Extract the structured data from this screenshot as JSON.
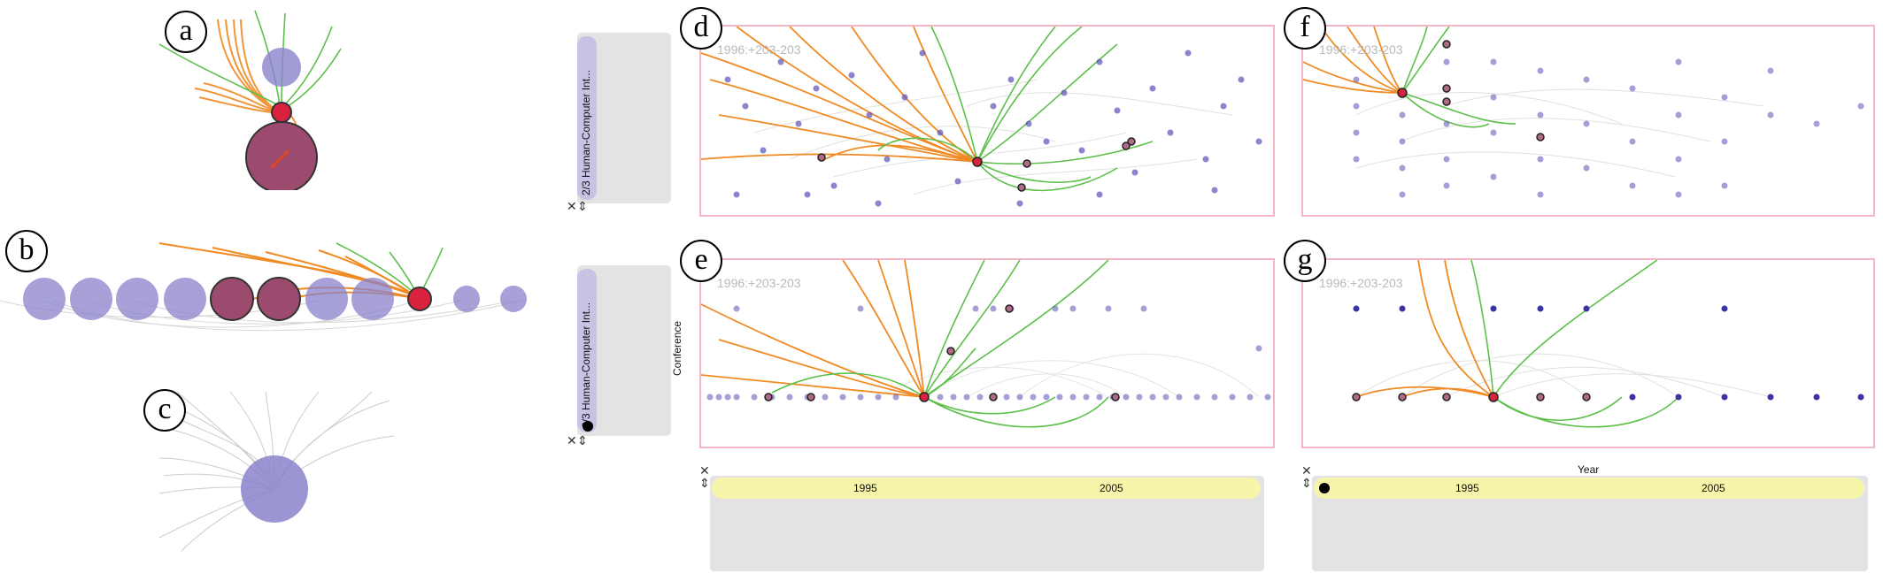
{
  "panels": {
    "a": {
      "tag": "a"
    },
    "b": {
      "tag": "b"
    },
    "c": {
      "tag": "c"
    },
    "d": {
      "tag": "d",
      "label": "1996:+203-203"
    },
    "e": {
      "tag": "e",
      "label": "1996:+203-203"
    },
    "f": {
      "tag": "f",
      "label": "1996:+203-203"
    },
    "g": {
      "tag": "g",
      "label": "1996:+203-203"
    }
  },
  "side_controls": [
    {
      "label": "2/3 Human-Computer Int...",
      "close": "✕",
      "resize": "⇕"
    },
    {
      "label": "2/3 Human-Computer Int...",
      "close": "✕",
      "resize": "⇕"
    }
  ],
  "e_axis_label": "Conference",
  "time_controls": [
    {
      "tick1": "1995",
      "tick2": "2005",
      "close": "✕",
      "resize": "⇕",
      "axis_title": ""
    },
    {
      "tick1": "1995",
      "tick2": "2005",
      "close": "✕",
      "resize": "⇕",
      "axis_title": "Year"
    }
  ],
  "colors": {
    "node": "#8a82cc",
    "node_dark": "#3b34a0",
    "focus": "#d9233e",
    "cited_fill": "#9c4b6e",
    "incoming": "#f08a24",
    "outgoing": "#5cc04a",
    "context": "#9a9a9a",
    "frame": "#f2b6c4",
    "timebar": "#f6f5a9"
  }
}
